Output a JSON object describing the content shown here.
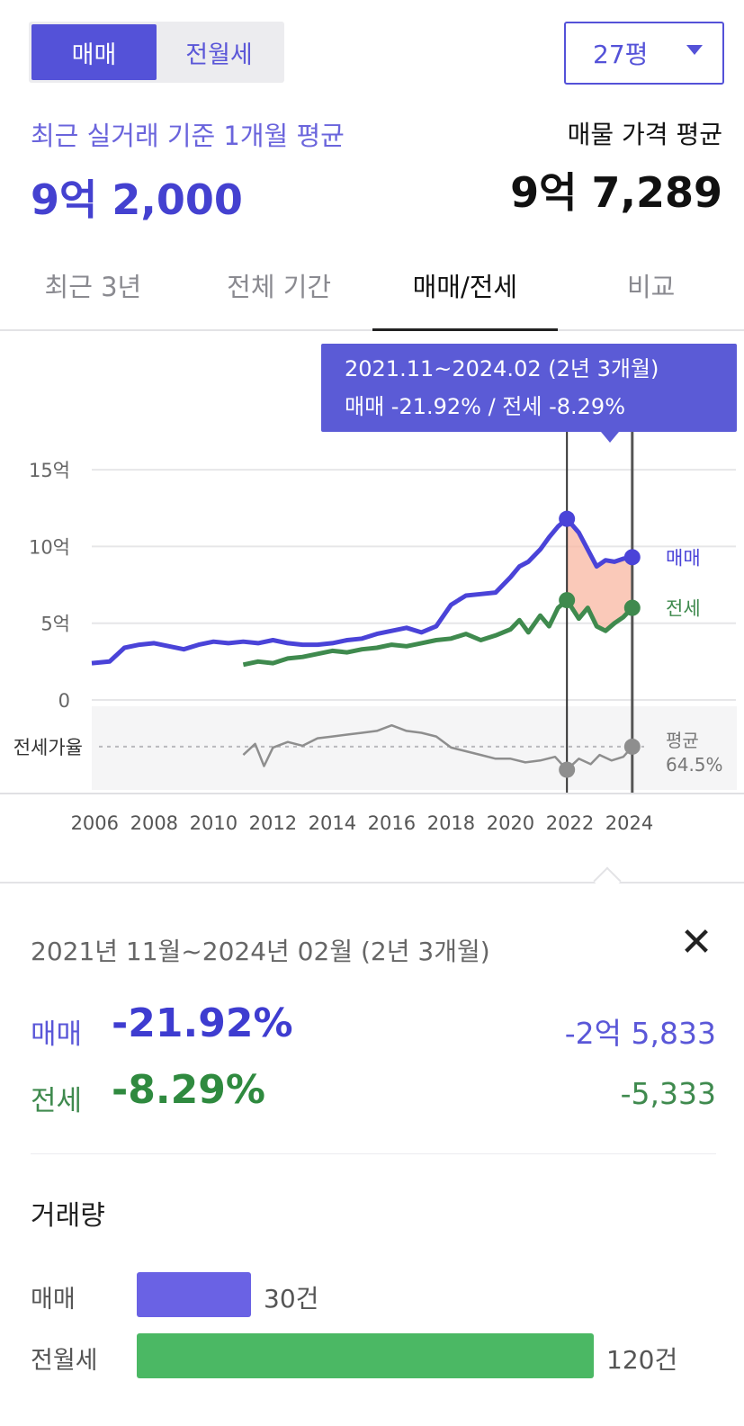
{
  "toggle": {
    "sale": "매매",
    "rent": "전월세"
  },
  "pyeong": "27평",
  "header": {
    "avg_label": "최근 실거래 기준 1개월 평균",
    "avg_value": "9억 2,000",
    "listing_label": "매물 가격 평균",
    "listing_value": "9억 7,289"
  },
  "tabs": [
    "최근 3년",
    "전체 기간",
    "매매/전세",
    "비교"
  ],
  "active_tab": 2,
  "tooltip": {
    "line1": "2021.11~2024.02 (2년 3개월)",
    "line2": "매매 -21.92%  /  전세 -8.29%"
  },
  "colors": {
    "sale": "#4a43d8",
    "jeonse": "#3f8a4e",
    "ratio": "#8e8e8e",
    "range_fill": "#f8b7a2",
    "tooltip_bg": "#5b5bd6"
  },
  "chart_data": {
    "type": "line",
    "y_unit": "억",
    "ylim": [
      0,
      16
    ],
    "yticks": [
      0,
      5,
      10,
      15
    ],
    "ytick_labels": [
      "0",
      "5억",
      "10억",
      "15억"
    ],
    "x_range": [
      2005.9,
      2024.5
    ],
    "xticks": [
      2006,
      2008,
      2010,
      2012,
      2014,
      2016,
      2018,
      2020,
      2022,
      2024
    ],
    "xtick_labels": [
      "2006",
      "2008",
      "2010",
      "2012",
      "2014",
      "2016",
      "2018",
      "2020",
      "2022",
      "2024"
    ],
    "grid": true,
    "selection": [
      2021.9,
      2024.1
    ],
    "series": [
      {
        "name": "매매",
        "x": [
          2005.9,
          2006.5,
          2007,
          2007.5,
          2008,
          2008.5,
          2009,
          2009.5,
          2010,
          2010.5,
          2011,
          2011.5,
          2012,
          2012.5,
          2013,
          2013.5,
          2014,
          2014.5,
          2015,
          2015.5,
          2016,
          2016.5,
          2017,
          2017.5,
          2018,
          2018.5,
          2019,
          2019.5,
          2020,
          2020.3,
          2020.6,
          2021,
          2021.3,
          2021.6,
          2021.9,
          2022.3,
          2022.6,
          2022.9,
          2023.2,
          2023.5,
          2023.8,
          2024.1
        ],
        "y": [
          2.4,
          2.5,
          3.4,
          3.6,
          3.7,
          3.5,
          3.3,
          3.6,
          3.8,
          3.7,
          3.8,
          3.7,
          3.9,
          3.7,
          3.6,
          3.6,
          3.7,
          3.9,
          4.0,
          4.3,
          4.5,
          4.7,
          4.4,
          4.8,
          6.2,
          6.8,
          6.9,
          7.0,
          8.0,
          8.7,
          9.0,
          9.8,
          10.6,
          11.3,
          11.8,
          10.9,
          9.8,
          8.7,
          9.1,
          9.0,
          9.2,
          9.3
        ]
      },
      {
        "name": "전세",
        "x": [
          2011,
          2011.5,
          2012,
          2012.5,
          2013,
          2013.5,
          2014,
          2014.5,
          2015,
          2015.5,
          2016,
          2016.5,
          2017,
          2017.5,
          2018,
          2018.5,
          2019,
          2019.5,
          2020,
          2020.3,
          2020.6,
          2021,
          2021.3,
          2021.6,
          2021.9,
          2022.3,
          2022.6,
          2022.9,
          2023.2,
          2023.5,
          2023.8,
          2024.1
        ],
        "y": [
          2.3,
          2.5,
          2.4,
          2.7,
          2.8,
          3.0,
          3.2,
          3.1,
          3.3,
          3.4,
          3.6,
          3.5,
          3.7,
          3.9,
          4.0,
          4.3,
          3.9,
          4.2,
          4.6,
          5.2,
          4.4,
          5.5,
          4.8,
          6.0,
          6.5,
          5.3,
          6.0,
          4.8,
          4.5,
          5.0,
          5.4,
          6.0
        ]
      }
    ],
    "ratio_label": "전세가율",
    "ratio_avg_label": "평균",
    "ratio_avg_value": "64.5%",
    "ratio": {
      "x": [
        2011,
        2011.4,
        2011.7,
        2012,
        2012.5,
        2013,
        2013.5,
        2014,
        2014.5,
        2015,
        2015.5,
        2016,
        2016.5,
        2017,
        2017.5,
        2018,
        2018.5,
        2019,
        2019.5,
        2020,
        2020.5,
        2021,
        2021.5,
        2021.9,
        2022.3,
        2022.7,
        2023,
        2023.4,
        2023.8,
        2024.1
      ],
      "y": [
        60,
        66,
        54,
        64,
        67,
        65,
        69,
        70,
        71,
        72,
        73,
        76,
        73,
        72,
        70,
        64,
        62,
        60,
        58,
        58,
        56,
        57,
        59,
        52,
        58,
        55,
        60,
        57,
        59,
        64.5
      ]
    },
    "ratio_ylim": [
      45,
      80
    ],
    "ratio_avg": 64.5,
    "end_labels": [
      "매매",
      "전세"
    ]
  },
  "detail": {
    "range": "2021년 11월~2024년 02월 (2년 3개월)",
    "close_glyph": "✕",
    "sale": {
      "label": "매매",
      "pct": "-21.92%",
      "amount": "-2억 5,833"
    },
    "jeonse": {
      "label": "전세",
      "pct": "-8.29%",
      "amount": "-5,333"
    }
  },
  "volume": {
    "title": "거래량",
    "max": 120,
    "rows": [
      {
        "label": "매매",
        "count": 30,
        "text": "30건",
        "color": "#6a62e4"
      },
      {
        "label": "전월세",
        "count": 120,
        "text": "120건",
        "color": "#4bb864"
      }
    ]
  }
}
